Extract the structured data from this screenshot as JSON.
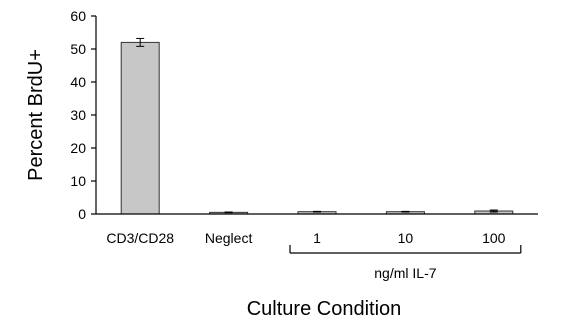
{
  "chart_data": {
    "type": "bar",
    "categories": [
      "CD3/CD28",
      "Neglect",
      "1",
      "10",
      "100"
    ],
    "values": [
      52,
      0.5,
      0.7,
      0.7,
      0.9
    ],
    "errors": [
      1.2,
      0.1,
      0.1,
      0.1,
      0.3
    ],
    "ylabel": "Percent BrdU+",
    "xlabel": "Culture Condition",
    "ylim": [
      0,
      60
    ],
    "yticks": [
      0,
      10,
      20,
      30,
      40,
      50,
      60
    ],
    "group_label": "ng/ml IL-7",
    "group_categories": [
      "1",
      "10",
      "100"
    ],
    "grid": false,
    "bar_color": "#c7c7c7"
  }
}
